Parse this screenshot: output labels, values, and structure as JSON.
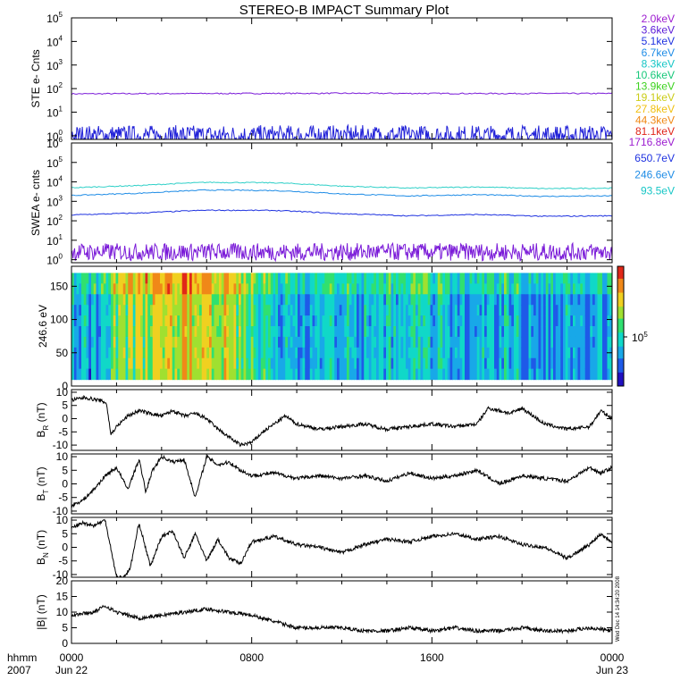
{
  "title": "STEREO-B IMPACT Summary Plot",
  "footer": {
    "hhmm_label": "hhmm",
    "year_label": "2007",
    "stamp": "Wed Dec 14 14:34:20 2008"
  },
  "chart_data": [
    {
      "id": "ste",
      "type": "line",
      "ylabel": "STE e- Cnts",
      "yscale": "log",
      "ylim": [
        0.7,
        100000
      ],
      "yticks": [
        {
          "v": 1,
          "b": "10",
          "e": "0"
        },
        {
          "v": 10,
          "b": "10",
          "e": "1"
        },
        {
          "v": 100,
          "b": "10",
          "e": "2"
        },
        {
          "v": 1000,
          "b": "10",
          "e": "3"
        },
        {
          "v": 10000,
          "b": "10",
          "e": "4"
        },
        {
          "v": 100000,
          "b": "10",
          "e": "5"
        }
      ],
      "legend": [
        {
          "label": "2.0keV",
          "color": "#9c1cd0"
        },
        {
          "label": "3.6keV",
          "color": "#5a1ad8"
        },
        {
          "label": "5.1keV",
          "color": "#1e32e0"
        },
        {
          "label": "6.7keV",
          "color": "#1e8ce6"
        },
        {
          "label": "8.3keV",
          "color": "#16c6c6"
        },
        {
          "label": "10.6keV",
          "color": "#18c87a"
        },
        {
          "label": "13.9keV",
          "color": "#3cd21e"
        },
        {
          "label": "19.1keV",
          "color": "#cacc16"
        },
        {
          "label": "27.8keV",
          "color": "#f0c010"
        },
        {
          "label": "44.3keV",
          "color": "#f08814"
        },
        {
          "label": "81.1keV",
          "color": "#e02418"
        }
      ],
      "series": [
        {
          "name": "2.0keV",
          "color": "#7a1ad8",
          "kind": "flat",
          "x": [
            0,
            6,
            12,
            18,
            24
          ],
          "y": [
            60,
            62,
            63,
            62,
            62
          ]
        },
        {
          "name": "3.6keV",
          "color": "#2222d8",
          "kind": "noisy",
          "x": [
            0,
            24
          ],
          "y": [
            1.0,
            1.0
          ]
        }
      ]
    },
    {
      "id": "swea",
      "type": "line",
      "ylabel": "SWEA e- cnts",
      "yscale": "log",
      "ylim": [
        0.7,
        1000000
      ],
      "yticks": [
        {
          "v": 1,
          "b": "10",
          "e": "0"
        },
        {
          "v": 10,
          "b": "10",
          "e": "1"
        },
        {
          "v": 100,
          "b": "10",
          "e": "2"
        },
        {
          "v": 1000,
          "b": "10",
          "e": "3"
        },
        {
          "v": 10000,
          "b": "10",
          "e": "4"
        },
        {
          "v": 100000,
          "b": "10",
          "e": "5"
        },
        {
          "v": 1000000,
          "b": "10",
          "e": "6"
        }
      ],
      "legend": [
        {
          "label": "1716.8eV",
          "color": "#9c1cd0"
        },
        {
          "label": "650.7eV",
          "color": "#1e32e0"
        },
        {
          "label": "246.6eV",
          "color": "#1e8ce6"
        },
        {
          "label": "93.5eV",
          "color": "#16c6c6"
        }
      ],
      "series": [
        {
          "name": "93.5eV",
          "color": "#30d0c8",
          "kind": "flat",
          "x": [
            0,
            3,
            6,
            9,
            12,
            15,
            18,
            21,
            24
          ],
          "y": [
            5000,
            6500,
            9500,
            9000,
            6000,
            4800,
            5500,
            4500,
            4800
          ]
        },
        {
          "name": "246.6eV",
          "color": "#1e8ce6",
          "kind": "flat",
          "x": [
            0,
            3,
            6,
            9,
            12,
            15,
            18,
            21,
            24
          ],
          "y": [
            2000,
            2600,
            3800,
            3600,
            2400,
            1900,
            2200,
            1800,
            1900
          ]
        },
        {
          "name": "650.7eV",
          "color": "#1e32e0",
          "kind": "flat",
          "x": [
            0,
            3,
            6,
            9,
            12,
            15,
            18,
            21,
            24
          ],
          "y": [
            200,
            250,
            350,
            340,
            230,
            180,
            210,
            170,
            180
          ]
        },
        {
          "name": "1716.8eV",
          "color": "#7a1ad8",
          "kind": "noisy",
          "x": [
            0,
            24
          ],
          "y": [
            2.5,
            2.5
          ]
        }
      ]
    },
    {
      "id": "pad",
      "type": "heatmap",
      "ylabel": "246.6 eV",
      "ylim": [
        0,
        180
      ],
      "yticks": [
        0,
        50,
        100,
        150
      ],
      "y_extent": [
        10,
        170
      ],
      "colorbar_label_base": "10",
      "colorbar_label_exp": "5",
      "colors": [
        "#2010c0",
        "#1e5ae8",
        "#18a8e8",
        "#10d8c8",
        "#30e070",
        "#a0e030",
        "#f0d020",
        "#f08818",
        "#e02818"
      ],
      "profile_x": [
        0,
        1,
        1.5,
        2,
        3,
        4,
        5,
        6,
        7,
        8,
        9,
        10,
        11,
        12,
        13,
        14,
        15,
        16,
        17,
        18,
        19,
        20,
        21,
        22,
        23,
        24
      ],
      "profile_v": [
        0.35,
        0.25,
        0.35,
        0.55,
        0.6,
        0.66,
        0.72,
        0.72,
        0.62,
        0.45,
        0.35,
        0.3,
        0.32,
        0.38,
        0.3,
        0.34,
        0.42,
        0.36,
        0.3,
        0.28,
        0.32,
        0.3,
        0.26,
        0.3,
        0.28,
        0.3
      ]
    },
    {
      "id": "br",
      "type": "line",
      "ylabel_main": "B",
      "ylabel_sub": "R",
      "ylabel_unit": " (nT)",
      "ylim": [
        -12,
        11
      ],
      "yticks": [
        -10,
        -5,
        0,
        5,
        10
      ],
      "series": [
        {
          "name": "BR",
          "color": "#000000",
          "x": [
            0,
            0.6,
            1.2,
            1.55,
            1.75,
            2,
            2.5,
            3,
            3.5,
            4,
            4.5,
            5,
            5.5,
            6,
            6.5,
            7,
            7.5,
            8,
            8.5,
            9,
            9.5,
            10,
            11,
            12,
            13,
            14,
            15,
            16,
            17,
            18,
            18.5,
            19,
            19.5,
            20,
            20.5,
            21,
            21.5,
            22,
            23,
            23.5,
            24
          ],
          "y": [
            7,
            8,
            7,
            6,
            -6,
            -3,
            1,
            3,
            2,
            1,
            3,
            1,
            2,
            0,
            -4,
            -7,
            -10,
            -9,
            -5,
            -2,
            1,
            -2,
            -4,
            -3,
            -2,
            -4,
            -3,
            -2,
            -3,
            -2,
            4,
            3,
            2,
            4,
            1,
            -2,
            -3,
            -4,
            -3,
            3,
            0
          ]
        }
      ]
    },
    {
      "id": "bt",
      "type": "line",
      "ylabel_main": "B",
      "ylabel_sub": "T",
      "ylabel_unit": " (nT)",
      "ylim": [
        -11,
        11
      ],
      "yticks": [
        -10,
        -5,
        0,
        5,
        10
      ],
      "series": [
        {
          "name": "BT",
          "color": "#000000",
          "x": [
            0,
            0.5,
            1,
            1.5,
            2,
            2.5,
            3,
            3.3,
            3.6,
            4,
            4.5,
            5,
            5.5,
            6,
            6.5,
            7,
            7.5,
            8,
            9,
            10,
            11,
            12,
            13,
            14,
            15,
            16,
            17,
            18,
            19,
            20,
            21,
            22,
            23,
            23.5,
            24
          ],
          "y": [
            -8,
            -6,
            -2,
            3,
            6,
            -2,
            9,
            -3,
            5,
            10,
            8,
            9,
            -5,
            10,
            7,
            8,
            5,
            3,
            4,
            2,
            3,
            2,
            3,
            1,
            4,
            2,
            3,
            5,
            0,
            3,
            2,
            1,
            6,
            4,
            6
          ]
        }
      ]
    },
    {
      "id": "bn",
      "type": "line",
      "ylabel_main": "B",
      "ylabel_sub": "N",
      "ylabel_unit": " (nT)",
      "ylim": [
        -11,
        11
      ],
      "yticks": [
        -10,
        -5,
        0,
        5,
        10
      ],
      "series": [
        {
          "name": "BN",
          "color": "#000000",
          "x": [
            0,
            0.5,
            1,
            1.5,
            2,
            2.3,
            2.6,
            3,
            3.5,
            4,
            4.5,
            5,
            5.5,
            6,
            6.5,
            7,
            7.5,
            8,
            9,
            10,
            11,
            12,
            13,
            14,
            15,
            16,
            17,
            18,
            19,
            20,
            21,
            22,
            23,
            23.5,
            24
          ],
          "y": [
            7,
            9,
            8,
            10,
            -11,
            -11,
            -8,
            9,
            -7,
            4,
            6,
            -4,
            5,
            -5,
            3,
            -4,
            -6,
            2,
            4,
            1,
            0,
            -2,
            1,
            3,
            2,
            4,
            5,
            3,
            4,
            1,
            0,
            -4,
            1,
            5,
            2
          ]
        }
      ]
    },
    {
      "id": "bmag",
      "type": "line",
      "ylabel": "|B| (nT)",
      "ylim": [
        0,
        20
      ],
      "yticks": [
        0,
        5,
        10,
        15,
        20
      ],
      "series": [
        {
          "name": "|B|",
          "color": "#000000",
          "x": [
            0,
            1,
            1.5,
            2,
            3,
            4,
            5,
            6,
            7,
            8,
            9,
            10,
            11,
            12,
            13,
            14,
            15,
            16,
            17,
            18,
            19,
            20,
            21,
            22,
            23,
            24
          ],
          "y": [
            9,
            10,
            12,
            10,
            8,
            9,
            10,
            11,
            10,
            9,
            7,
            5,
            5,
            5,
            4,
            4,
            5,
            4,
            5,
            4,
            4,
            5,
            4,
            4,
            5,
            4
          ]
        }
      ]
    }
  ],
  "xaxis": {
    "range": [
      0,
      24
    ],
    "ticks": [
      {
        "v": 0,
        "label": "0000",
        "sub": "Jun 22"
      },
      {
        "v": 8,
        "label": "0800",
        "sub": ""
      },
      {
        "v": 16,
        "label": "1600",
        "sub": ""
      },
      {
        "v": 24,
        "label": "0000",
        "sub": "Jun 23"
      }
    ]
  }
}
